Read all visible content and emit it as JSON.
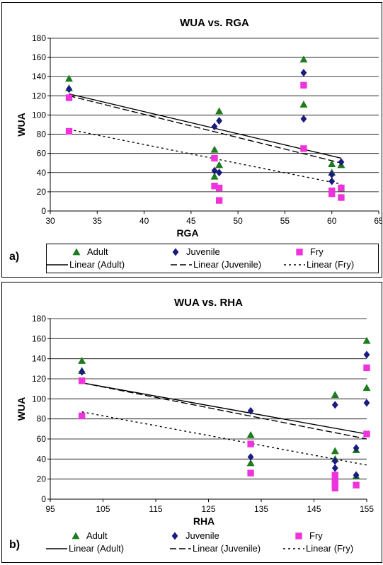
{
  "chart_data": [
    {
      "type": "scatter",
      "panel_label": "a)",
      "title": "WUA vs. RGA",
      "xlabel": "RGA",
      "ylabel": "WUA",
      "xlim": [
        30,
        65
      ],
      "ylim": [
        0,
        180
      ],
      "x_ticks": [
        "30",
        "35",
        "40",
        "45",
        "50",
        "55",
        "60",
        "65"
      ],
      "y_ticks": [
        "0",
        "20",
        "40",
        "60",
        "80",
        "100",
        "120",
        "140",
        "160",
        "180"
      ],
      "grid": "horizontal",
      "legend_position": "bottom",
      "series": [
        {
          "name": "Adult",
          "marker": "triangle",
          "color": "#1e7b1e",
          "points": [
            [
              32,
              138
            ],
            [
              32,
              128
            ],
            [
              47.5,
              64
            ],
            [
              47.5,
              36
            ],
            [
              48,
              104
            ],
            [
              48,
              48
            ],
            [
              57,
              158
            ],
            [
              57,
              111
            ],
            [
              60,
              49
            ],
            [
              60,
              40
            ],
            [
              61,
              48
            ],
            [
              61,
              23
            ]
          ]
        },
        {
          "name": "Juvenile",
          "marker": "diamond",
          "color": "#1a1a80",
          "points": [
            [
              32,
              127
            ],
            [
              47.5,
              88
            ],
            [
              47.5,
              42
            ],
            [
              48,
              94
            ],
            [
              48,
              40
            ],
            [
              57,
              144
            ],
            [
              57,
              96
            ],
            [
              60,
              38
            ],
            [
              60,
              31
            ],
            [
              61,
              51
            ],
            [
              61,
              24
            ]
          ]
        },
        {
          "name": "Fry",
          "marker": "square",
          "color": "#ee33dd",
          "points": [
            [
              32,
              118
            ],
            [
              32,
              83
            ],
            [
              47.5,
              55
            ],
            [
              47.5,
              26
            ],
            [
              48,
              24
            ],
            [
              48,
              11
            ],
            [
              57,
              131
            ],
            [
              57,
              65
            ],
            [
              60,
              21
            ],
            [
              60,
              18
            ],
            [
              61,
              24
            ],
            [
              61,
              14
            ]
          ]
        }
      ],
      "trendlines": [
        {
          "name": "Linear (Adult)",
          "style": "solid",
          "from": [
            32,
            122
          ],
          "to": [
            61,
            55
          ]
        },
        {
          "name": "Linear (Juvenile)",
          "style": "dashed",
          "from": [
            32,
            120
          ],
          "to": [
            61,
            50
          ]
        },
        {
          "name": "Linear (Fry)",
          "style": "dotted",
          "from": [
            32,
            85
          ],
          "to": [
            61,
            28
          ]
        }
      ]
    },
    {
      "type": "scatter",
      "panel_label": "b)",
      "title": "WUA vs. RHA",
      "xlabel": "RHA",
      "ylabel": "WUA",
      "xlim": [
        95,
        155
      ],
      "ylim": [
        0,
        180
      ],
      "x_ticks": [
        "95",
        "105",
        "115",
        "125",
        "135",
        "145",
        "155"
      ],
      "y_ticks": [
        "0",
        "20",
        "40",
        "60",
        "80",
        "100",
        "120",
        "140",
        "160",
        "180"
      ],
      "grid": "horizontal",
      "legend_position": "bottom",
      "series": [
        {
          "name": "Adult",
          "marker": "triangle",
          "color": "#1e7b1e",
          "points": [
            [
              101,
              138
            ],
            [
              101,
              128
            ],
            [
              133,
              64
            ],
            [
              133,
              36
            ],
            [
              149,
              104
            ],
            [
              149,
              48
            ],
            [
              149,
              40
            ],
            [
              153,
              49
            ],
            [
              153,
              23
            ],
            [
              155,
              158
            ],
            [
              155,
              111
            ]
          ]
        },
        {
          "name": "Juvenile",
          "marker": "diamond",
          "color": "#1a1a80",
          "points": [
            [
              101,
              127
            ],
            [
              133,
              88
            ],
            [
              133,
              42
            ],
            [
              149,
              94
            ],
            [
              149,
              38
            ],
            [
              149,
              31
            ],
            [
              153,
              51
            ],
            [
              153,
              24
            ],
            [
              155,
              144
            ],
            [
              155,
              96
            ]
          ]
        },
        {
          "name": "Fry",
          "marker": "square",
          "color": "#ee33dd",
          "points": [
            [
              101,
              118
            ],
            [
              101,
              83
            ],
            [
              133,
              55
            ],
            [
              133,
              26
            ],
            [
              149,
              24
            ],
            [
              149,
              21
            ],
            [
              149,
              18
            ],
            [
              149,
              14
            ],
            [
              149,
              11
            ],
            [
              153,
              14
            ],
            [
              155,
              131
            ],
            [
              155,
              65
            ]
          ]
        }
      ],
      "trendlines": [
        {
          "name": "Linear (Adult)",
          "style": "solid",
          "from": [
            101,
            116
          ],
          "to": [
            155,
            65
          ]
        },
        {
          "name": "Linear (Juvenile)",
          "style": "dashed",
          "from": [
            101,
            116
          ],
          "to": [
            155,
            60
          ]
        },
        {
          "name": "Linear (Fry)",
          "style": "dotted",
          "from": [
            101,
            87
          ],
          "to": [
            155,
            34
          ]
        }
      ]
    }
  ]
}
